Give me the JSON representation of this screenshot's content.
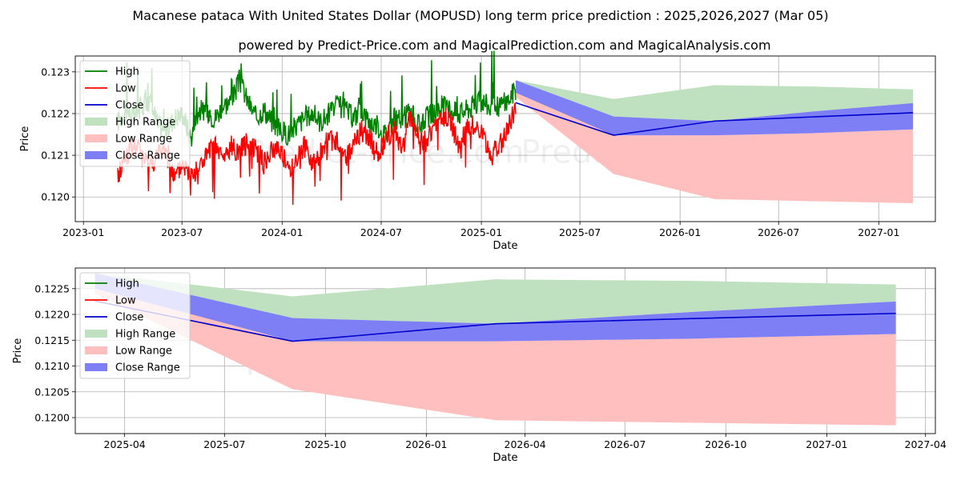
{
  "chart_data": [
    {
      "type": "line",
      "title": "Macanese pataca With United States Dollar (MOPUSD) long term price prediction : 2025,2026,2027 (Mar 05)",
      "subtitle": "powered by Predict-Price.com and MagicalPrediction.com and MagicalAnalysis.com",
      "watermark": "Predict-Price.com",
      "xlabel": "Date",
      "ylabel": "Price",
      "xlim": [
        "2022-12-17",
        "2027-04-15"
      ],
      "ylim": [
        0.11941,
        0.12338
      ],
      "xticks": [
        "2023-01",
        "2023-07",
        "2024-01",
        "2024-07",
        "2025-01",
        "2025-07",
        "2026-01",
        "2026-07",
        "2027-01"
      ],
      "yticks": [
        "0.120",
        "0.121",
        "0.122",
        "0.123"
      ],
      "legend_position": "upper left",
      "legend": [
        "High",
        "Low",
        "Close",
        "High Range",
        "Low Range",
        "Close Range"
      ],
      "colors": {
        "high": "#008000",
        "low": "#ff0000",
        "close": "#0000cc",
        "high_range": "#bfe1bf",
        "low_range": "#ffbfbf",
        "close_range": "#7f7ff5"
      },
      "history": {
        "x_start": "2023-03-05",
        "x_end": "2025-03-05",
        "high_anchors": [
          0.1218,
          0.1221,
          0.1219,
          0.1222,
          0.1223,
          0.1217,
          0.1216,
          0.1219,
          0.122,
          0.1214,
          0.1221,
          0.122,
          0.1219,
          0.1222,
          0.1223,
          0.1228,
          0.1223,
          0.1219,
          0.1221,
          0.1218,
          0.1216,
          0.1215,
          0.1217,
          0.1219,
          0.122,
          0.1218,
          0.122,
          0.1222,
          0.1221,
          0.1219,
          0.1221,
          0.1218,
          0.1217,
          0.1215,
          0.1219,
          0.1218,
          0.1221,
          0.1217,
          0.1219,
          0.122,
          0.1222,
          0.1221,
          0.122,
          0.1221,
          0.1222,
          0.1223,
          0.1221,
          0.1222,
          0.1223,
          0.1226
        ],
        "low_anchors": [
          0.1205,
          0.121,
          0.1212,
          0.1211,
          0.1208,
          0.121,
          0.1212,
          0.1204,
          0.1208,
          0.1205,
          0.1207,
          0.121,
          0.1212,
          0.1209,
          0.1212,
          0.1211,
          0.1213,
          0.1212,
          0.1208,
          0.1211,
          0.1212,
          0.1206,
          0.1209,
          0.1212,
          0.1208,
          0.1211,
          0.1214,
          0.1213,
          0.1209,
          0.1212,
          0.1216,
          0.1214,
          0.121,
          0.1214,
          0.1216,
          0.1212,
          0.1219,
          0.1214,
          0.1213,
          0.1217,
          0.1219,
          0.1218,
          0.1212,
          0.1216,
          0.1218,
          0.1214,
          0.121,
          0.1212,
          0.1217,
          0.1221
        ]
      },
      "forecast": {
        "dates": [
          "2025-03-05",
          "2025-09-01",
          "2026-03-05",
          "2026-09-01",
          "2027-03-05"
        ],
        "close": [
          0.12226,
          0.12148,
          0.12182,
          0.12192,
          0.12202
        ],
        "high_range_upper": [
          0.1228,
          0.12235,
          0.12268,
          0.12265,
          0.12258
        ],
        "high_range_lower": [
          0.1227,
          0.12193,
          0.12182,
          0.12205,
          0.12225
        ],
        "low_range_upper": [
          0.1225,
          0.12148,
          0.12148,
          0.12153,
          0.12162
        ],
        "low_range_lower": [
          0.1224,
          0.12055,
          0.11995,
          0.1199,
          0.11985
        ],
        "close_range_upper": [
          0.1228,
          0.12193,
          0.12182,
          0.12205,
          0.12225
        ],
        "close_range_lower": [
          0.1225,
          0.12148,
          0.12148,
          0.12153,
          0.12162
        ]
      }
    },
    {
      "type": "line",
      "xlabel": "Date",
      "ylabel": "Price",
      "xlim": [
        "2025-02-15",
        "2027-04-10"
      ],
      "ylim": [
        0.11969,
        0.1229
      ],
      "xticks": [
        "2025-04",
        "2025-07",
        "2025-10",
        "2026-01",
        "2026-04",
        "2026-07",
        "2026-10",
        "2027-01",
        "2027-04"
      ],
      "yticks": [
        "0.1200",
        "0.1205",
        "0.1210",
        "0.1215",
        "0.1220",
        "0.1225"
      ],
      "legend_position": "upper left",
      "legend": [
        "High",
        "Low",
        "Close",
        "High Range",
        "Low Range",
        "Close Range"
      ],
      "series_ref": "forecast of chart 1"
    }
  ]
}
